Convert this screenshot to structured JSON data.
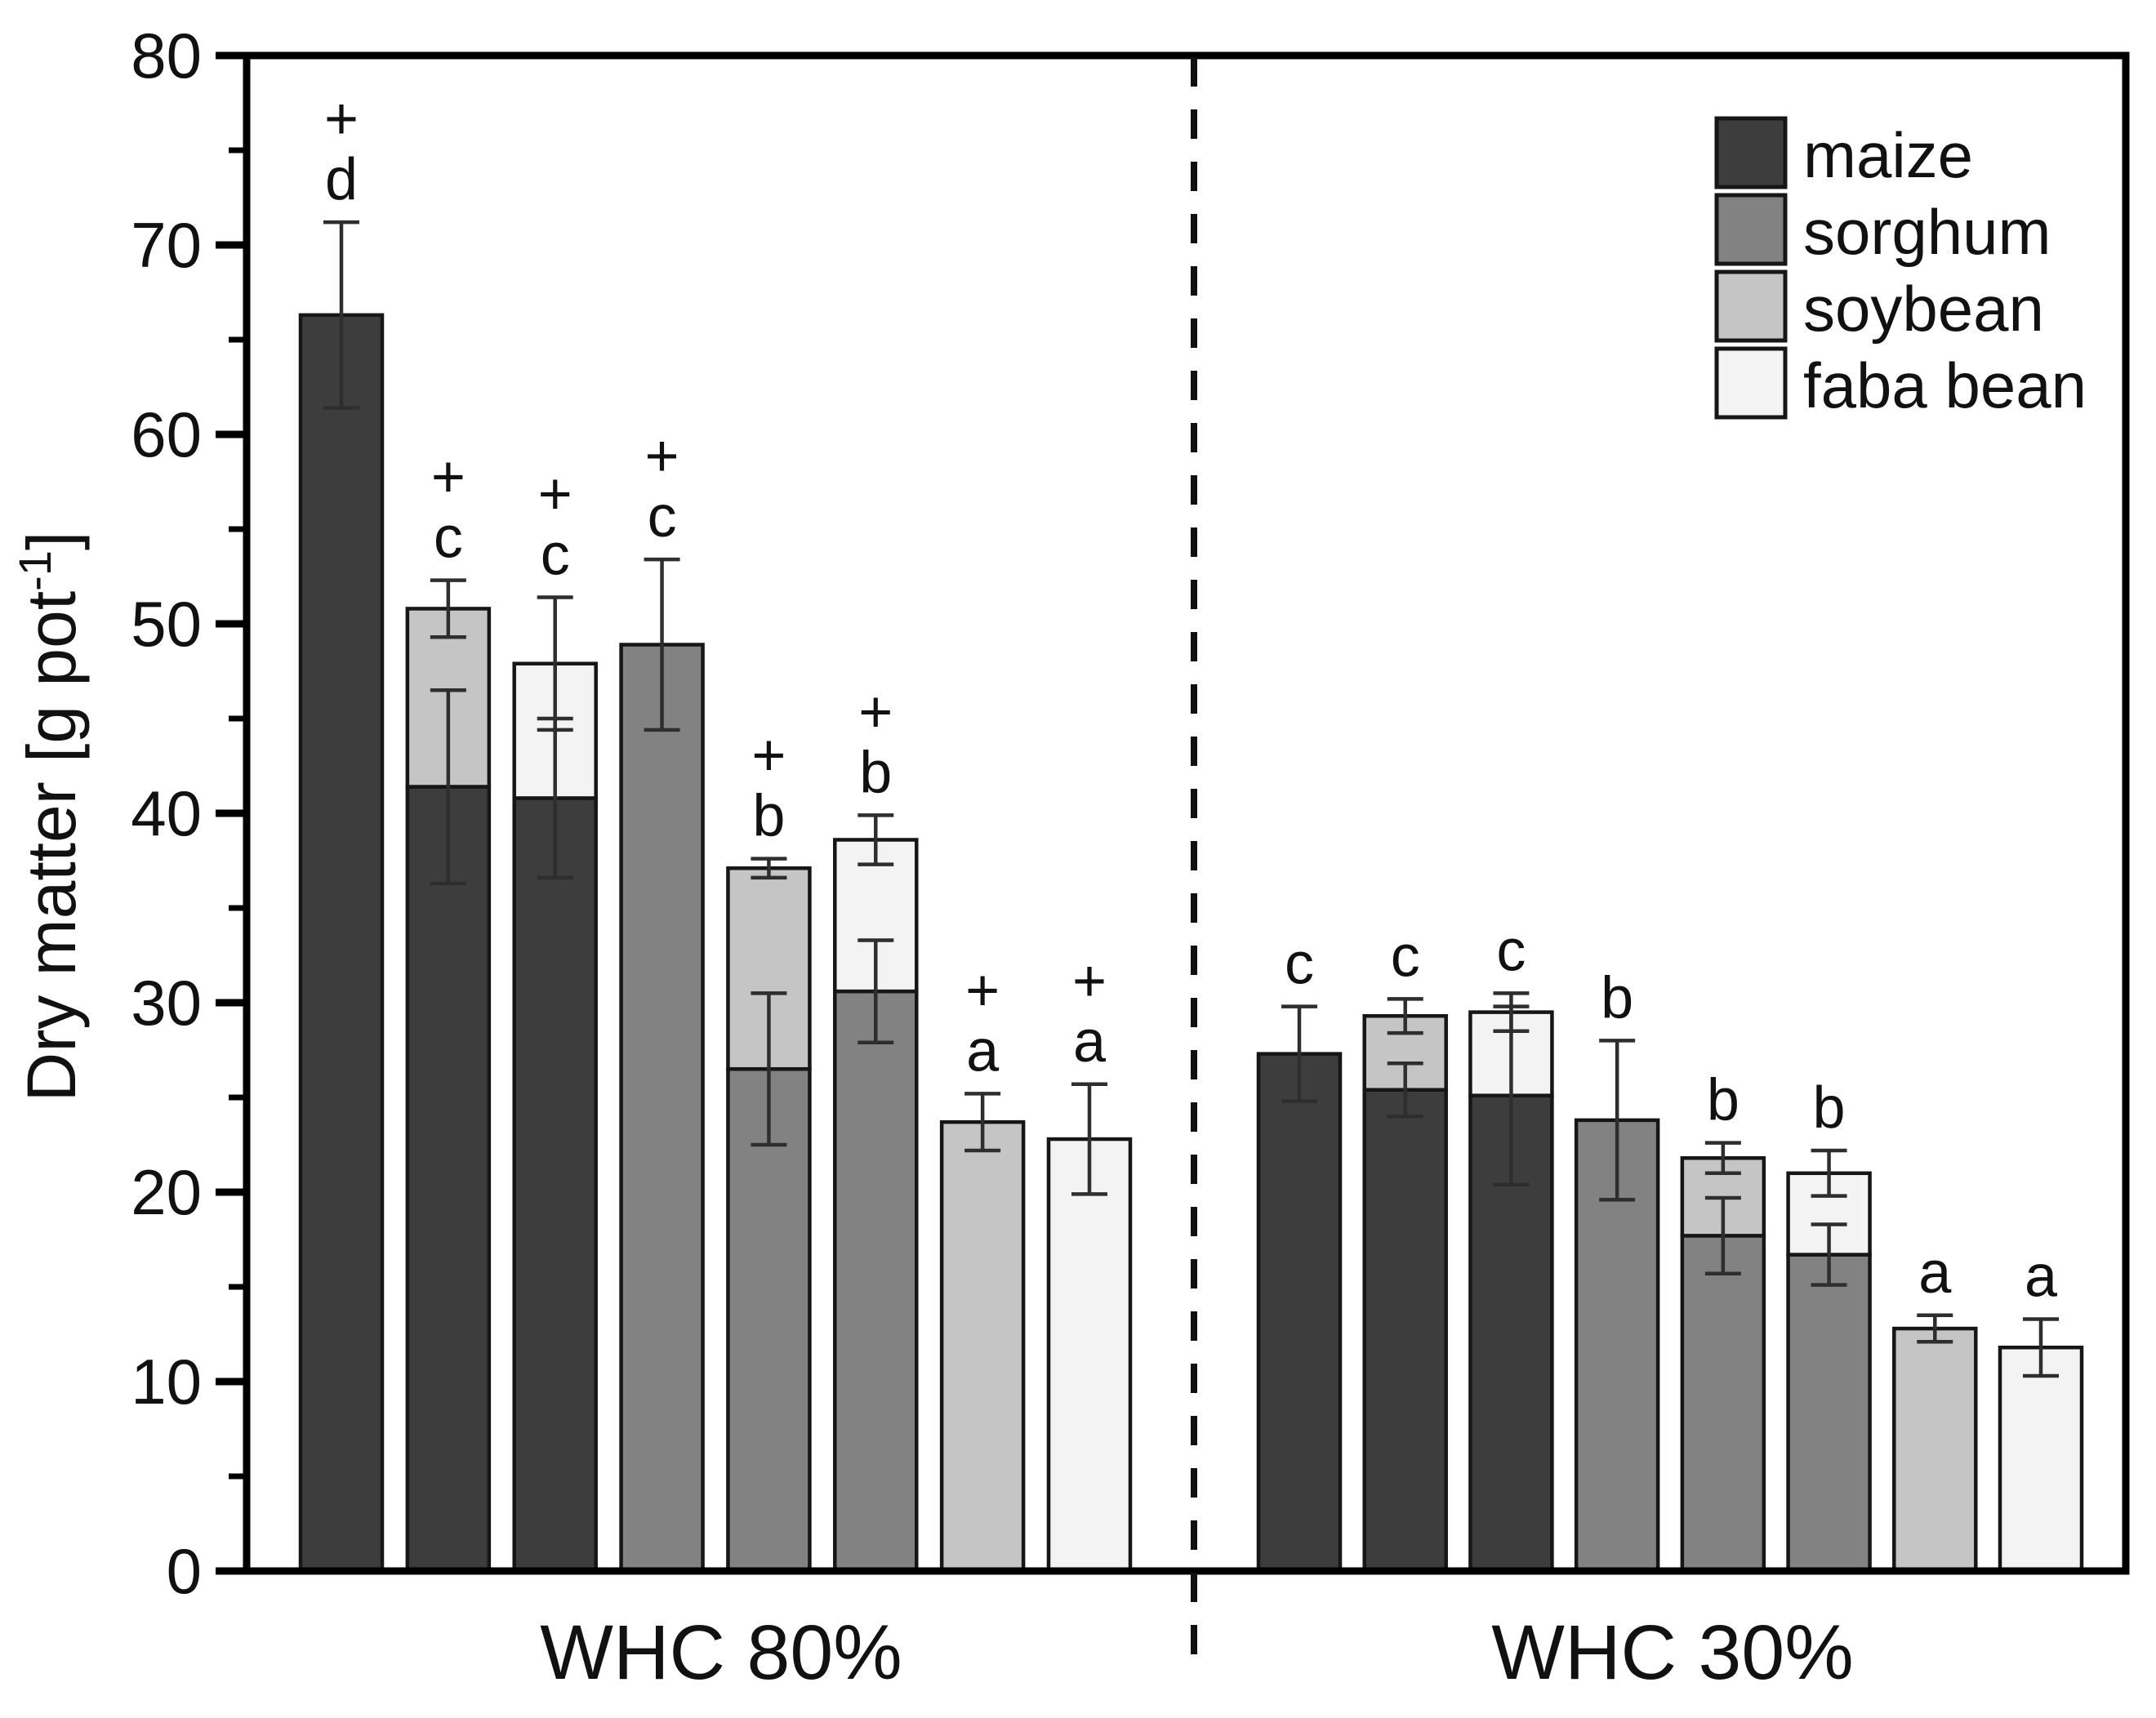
{
  "chart_data": {
    "type": "bar",
    "title": "",
    "ylabel": {
      "prefix": "Dry matter [g pot",
      "superscript": "-1",
      "suffix": "]"
    },
    "ylim": [
      0,
      80
    ],
    "ytick_labels": [
      "0",
      "10",
      "20",
      "30",
      "40",
      "50",
      "60",
      "70",
      "80"
    ],
    "ytick_major_step": 10,
    "ytick_minor_step": 5,
    "grid": "off",
    "legend_position": "top-right-inside",
    "legend": [
      {
        "label": "maize",
        "color": "#3d3d3d"
      },
      {
        "label": "sorghum",
        "color": "#828282"
      },
      {
        "label": "soybean",
        "color": "#c5c5c5"
      },
      {
        "label": "faba bean",
        "color": "#f3f3f3"
      }
    ],
    "series_colors": {
      "maize": "#3d3d3d",
      "sorghum": "#828282",
      "soybean": "#c5c5c5",
      "faba bean": "#f3f3f3"
    },
    "groups": [
      {
        "label": "WHC 80%",
        "bars": [
          {
            "segments": [
              {
                "species": "maize",
                "value": 66.3
              }
            ],
            "total": 66.3,
            "total_err": 4.9,
            "seg_err": null,
            "sig": "d",
            "plus": true
          },
          {
            "segments": [
              {
                "species": "maize",
                "value": 41.4
              },
              {
                "species": "soybean",
                "value": 9.4
              }
            ],
            "total": 50.8,
            "total_err": 1.5,
            "seg_err": 5.1,
            "sig": "c",
            "plus": true
          },
          {
            "segments": [
              {
                "species": "maize",
                "value": 40.8
              },
              {
                "species": "faba bean",
                "value": 7.1
              }
            ],
            "total": 47.9,
            "total_err": 3.5,
            "seg_err": 4.2,
            "sig": "c",
            "plus": true
          },
          {
            "segments": [
              {
                "species": "sorghum",
                "value": 48.9
              }
            ],
            "total": 48.9,
            "total_err": 4.5,
            "seg_err": null,
            "sig": "c",
            "plus": true
          },
          {
            "segments": [
              {
                "species": "sorghum",
                "value": 26.5
              },
              {
                "species": "soybean",
                "value": 10.6
              }
            ],
            "total": 37.1,
            "total_err": 0.5,
            "seg_err": 4.0,
            "sig": "b",
            "plus": true
          },
          {
            "segments": [
              {
                "species": "sorghum",
                "value": 30.6
              },
              {
                "species": "faba bean",
                "value": 8.0
              }
            ],
            "total": 38.6,
            "total_err": 1.3,
            "seg_err": 2.7,
            "sig": "b",
            "plus": true
          },
          {
            "segments": [
              {
                "species": "soybean",
                "value": 23.7
              }
            ],
            "total": 23.7,
            "total_err": 1.5,
            "seg_err": null,
            "sig": "a",
            "plus": true
          },
          {
            "segments": [
              {
                "species": "faba bean",
                "value": 22.8
              }
            ],
            "total": 22.8,
            "total_err": 2.9,
            "seg_err": null,
            "sig": "a",
            "plus": true
          }
        ]
      },
      {
        "label": "WHC 30%",
        "bars": [
          {
            "segments": [
              {
                "species": "maize",
                "value": 27.3
              }
            ],
            "total": 27.3,
            "total_err": 2.5,
            "seg_err": null,
            "sig": "c",
            "plus": false
          },
          {
            "segments": [
              {
                "species": "maize",
                "value": 25.4
              },
              {
                "species": "soybean",
                "value": 3.9
              }
            ],
            "total": 29.3,
            "total_err": 0.9,
            "seg_err": 1.4,
            "sig": "c",
            "plus": false
          },
          {
            "segments": [
              {
                "species": "maize",
                "value": 25.1
              },
              {
                "species": "faba bean",
                "value": 4.4
              }
            ],
            "total": 29.5,
            "total_err": 1.0,
            "seg_err": 4.7,
            "sig": "c",
            "plus": false
          },
          {
            "segments": [
              {
                "species": "sorghum",
                "value": 23.8
              }
            ],
            "total": 23.8,
            "total_err": 4.2,
            "seg_err": null,
            "sig": "b",
            "plus": false
          },
          {
            "segments": [
              {
                "species": "sorghum",
                "value": 17.7
              },
              {
                "species": "soybean",
                "value": 4.1
              }
            ],
            "total": 21.8,
            "total_err": 0.8,
            "seg_err": 2.0,
            "sig": "b",
            "plus": false
          },
          {
            "segments": [
              {
                "species": "sorghum",
                "value": 16.7
              },
              {
                "species": "faba bean",
                "value": 4.3
              }
            ],
            "total": 21.0,
            "total_err": 1.2,
            "seg_err": 1.6,
            "sig": "b",
            "plus": false
          },
          {
            "segments": [
              {
                "species": "soybean",
                "value": 12.8
              }
            ],
            "total": 12.8,
            "total_err": 0.7,
            "seg_err": null,
            "sig": "a",
            "plus": false
          },
          {
            "segments": [
              {
                "species": "faba bean",
                "value": 11.8
              }
            ],
            "total": 11.8,
            "total_err": 1.5,
            "seg_err": null,
            "sig": "a",
            "plus": false
          }
        ]
      }
    ]
  }
}
